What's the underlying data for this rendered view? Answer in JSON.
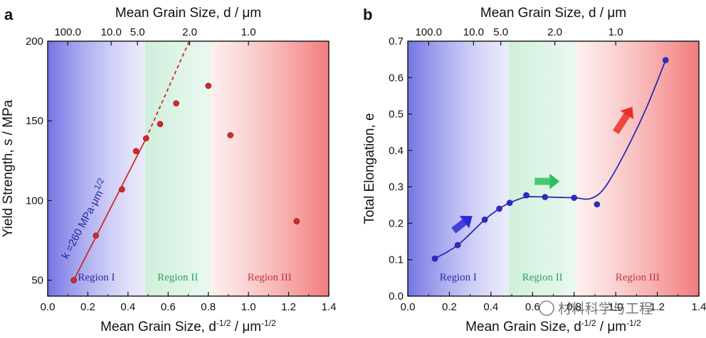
{
  "chart_data": [
    {
      "panel": "a",
      "type": "scatter",
      "xlabel": "Mean Grain Size, d",
      "xlabel_sup": "-1/2",
      "xlabel_unit": " / μm",
      "xlabel_unit_sup": "-1/2",
      "top_xlabel": "Mean Grain Size, d / μm",
      "ylabel": "Yield Strength, s / MPa",
      "xlim": [
        0.0,
        1.4
      ],
      "ylim": [
        40,
        200
      ],
      "x_ticks": [
        "0.0",
        "0.2",
        "0.4",
        "0.6",
        "0.8",
        "1.0",
        "1.2",
        "1.4"
      ],
      "y_ticks": [
        "50",
        "100",
        "150",
        "200"
      ],
      "top_ticks": [
        {
          "label": "100.0",
          "d": 100
        },
        {
          "label": "10.0",
          "d": 10
        },
        {
          "label": "5.0",
          "d": 5
        },
        {
          "label": "2.0",
          "d": 2
        },
        {
          "label": "1.0",
          "d": 1
        }
      ],
      "regions": [
        {
          "label": "Region I",
          "from": 0.0,
          "to": 0.485,
          "color": "#3a3adc",
          "text_color": "#2a2aa8"
        },
        {
          "label": "Region II",
          "from": 0.485,
          "to": 0.81,
          "color": "#2fc36a",
          "text_color": "#2aa55c"
        },
        {
          "label": "Region III",
          "from": 0.81,
          "to": 1.4,
          "color": "#f04848",
          "text_color": "#c8323a"
        }
      ],
      "points": [
        {
          "x": 0.13,
          "y": 50
        },
        {
          "x": 0.24,
          "y": 78
        },
        {
          "x": 0.37,
          "y": 107
        },
        {
          "x": 0.44,
          "y": 131
        },
        {
          "x": 0.49,
          "y": 139
        },
        {
          "x": 0.56,
          "y": 148
        },
        {
          "x": 0.64,
          "y": 161
        },
        {
          "x": 0.8,
          "y": 172
        },
        {
          "x": 0.91,
          "y": 141
        },
        {
          "x": 1.24,
          "y": 87
        }
      ],
      "fit_line": {
        "x0": 0.13,
        "y0": 50,
        "x1": 0.49,
        "y1": 139,
        "dashed_to_x": 0.705,
        "dashed_to_y": 200
      },
      "slope_label": "k =260 MPa·μm",
      "slope_label_sup": "1/2",
      "marker_color": "#d42a2a",
      "line_color": "#cc2a2a"
    },
    {
      "panel": "b",
      "type": "line",
      "xlabel": "Mean Grain Size, d",
      "xlabel_sup": "-1/2",
      "xlabel_unit": " / μm",
      "xlabel_unit_sup": "-1/2",
      "top_xlabel": "Mean Grain Size, d / μm",
      "ylabel": "Total Elongation, e",
      "xlim": [
        0.0,
        1.4
      ],
      "ylim": [
        0.0,
        0.7
      ],
      "x_ticks": [
        "0.0",
        "0.2",
        "0.4",
        "0.6",
        "0.8",
        "1.0",
        "1.2",
        "1.4"
      ],
      "y_ticks": [
        "0.0",
        "0.1",
        "0.2",
        "0.3",
        "0.4",
        "0.5",
        "0.6",
        "0.7"
      ],
      "top_ticks": [
        {
          "label": "100.0",
          "d": 100
        },
        {
          "label": "10.0",
          "d": 10
        },
        {
          "label": "5.0",
          "d": 5
        },
        {
          "label": "2.0",
          "d": 2
        },
        {
          "label": "1.0",
          "d": 1
        }
      ],
      "regions": [
        {
          "label": "Region I",
          "from": 0.0,
          "to": 0.485,
          "color": "#3a3adc",
          "text_color": "#2a2aa8"
        },
        {
          "label": "Region II",
          "from": 0.485,
          "to": 0.81,
          "color": "#2fc36a",
          "text_color": "#2aa55c"
        },
        {
          "label": "Region III",
          "from": 0.81,
          "to": 1.4,
          "color": "#f04848",
          "text_color": "#c8323a"
        }
      ],
      "points": [
        {
          "x": 0.13,
          "y": 0.103
        },
        {
          "x": 0.24,
          "y": 0.14
        },
        {
          "x": 0.37,
          "y": 0.21
        },
        {
          "x": 0.44,
          "y": 0.24
        },
        {
          "x": 0.49,
          "y": 0.256
        },
        {
          "x": 0.57,
          "y": 0.277
        },
        {
          "x": 0.66,
          "y": 0.272
        },
        {
          "x": 0.8,
          "y": 0.27
        },
        {
          "x": 0.91,
          "y": 0.252
        },
        {
          "x": 1.24,
          "y": 0.648
        }
      ],
      "curve": [
        {
          "x": 0.13,
          "y": 0.103
        },
        {
          "x": 0.24,
          "y": 0.14
        },
        {
          "x": 0.37,
          "y": 0.21
        },
        {
          "x": 0.44,
          "y": 0.24
        },
        {
          "x": 0.49,
          "y": 0.256
        },
        {
          "x": 0.57,
          "y": 0.272
        },
        {
          "x": 0.66,
          "y": 0.272
        },
        {
          "x": 0.8,
          "y": 0.27
        },
        {
          "x": 0.88,
          "y": 0.268
        },
        {
          "x": 0.95,
          "y": 0.3
        },
        {
          "x": 1.05,
          "y": 0.4
        },
        {
          "x": 1.15,
          "y": 0.52
        },
        {
          "x": 1.24,
          "y": 0.648
        }
      ],
      "arrows": [
        {
          "x": 0.22,
          "y": 0.18,
          "dx": 0.09,
          "dy": 0.04,
          "color": "#2a2ad8"
        },
        {
          "x": 0.61,
          "y": 0.315,
          "dx": 0.12,
          "dy": 0.0,
          "color": "#2fbf5a"
        },
        {
          "x": 1.0,
          "y": 0.45,
          "dx": 0.08,
          "dy": 0.07,
          "color": "#e8302a"
        }
      ],
      "marker_color": "#2a2acc",
      "line_color": "#2a2ab8"
    }
  ],
  "watermark": "材料科学与工程"
}
